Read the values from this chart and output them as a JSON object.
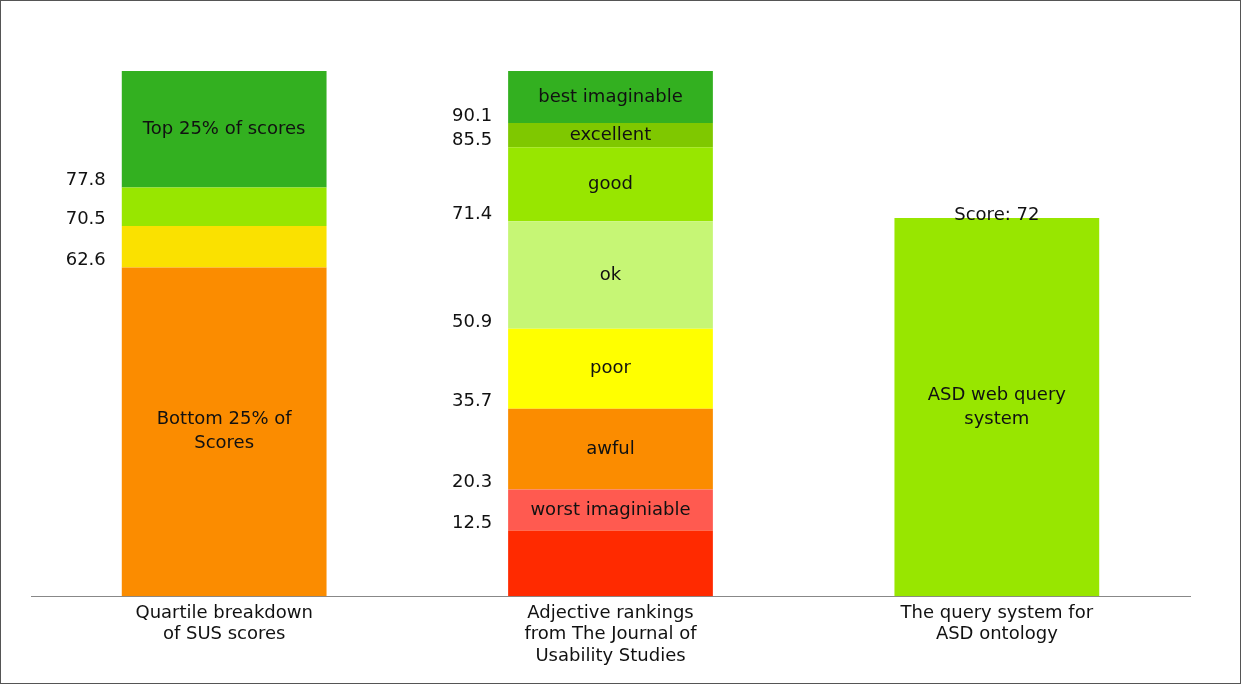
{
  "chart_data": {
    "type": "bar",
    "stacked": true,
    "categories": [
      "Quartile breakdown of SUS scores",
      "Adjective rankings from The Journal of Usability Studies",
      "The query system for ASD ontology"
    ],
    "ylim": [
      0,
      100
    ],
    "tick_labels": "x",
    "grid": false,
    "legend": false,
    "series": [
      {
        "name": "Bottom 25% of Scores",
        "color": "#fb8c00",
        "values": [
          62.6,
          null,
          null
        ]
      },
      {
        "color": "#fae100",
        "values": [
          7.9,
          null,
          null
        ]
      },
      {
        "color": "#98e600",
        "values": [
          7.3,
          null,
          null
        ]
      },
      {
        "name": "Top 25% of scores",
        "color": "#33b020",
        "values": [
          22.2,
          null,
          null
        ]
      },
      {
        "color": "#ff2a00",
        "values": [
          null,
          12.5,
          null
        ]
      },
      {
        "name": "worst imaginiable",
        "color": "#ff5a50",
        "values": [
          null,
          7.8,
          null
        ]
      },
      {
        "name": "awful",
        "color": "#fb8c00",
        "values": [
          null,
          15.4,
          null
        ]
      },
      {
        "name": "poor",
        "color": "#ffff00",
        "values": [
          null,
          15.2,
          null
        ]
      },
      {
        "name": "ok",
        "color": "#c6f675",
        "values": [
          null,
          20.5,
          null
        ]
      },
      {
        "name": "good",
        "color": "#98e600",
        "values": [
          null,
          14.1,
          null
        ]
      },
      {
        "name": "excellent",
        "color": "#7fc800",
        "values": [
          null,
          4.6,
          null
        ]
      },
      {
        "name": "best imaginable",
        "color": "#33b020",
        "values": [
          null,
          9.9,
          null
        ]
      },
      {
        "name": "ASD web query system",
        "color": "#98e600",
        "values": [
          null,
          null,
          72
        ],
        "value_labels": [
          null,
          null,
          "Score: 72"
        ]
      }
    ],
    "annotations": [
      "62.6",
      "70.5",
      "77.8",
      "12.5",
      "20.3",
      "35.7",
      "50.9",
      "71.4",
      "85.5",
      "90.1"
    ]
  }
}
